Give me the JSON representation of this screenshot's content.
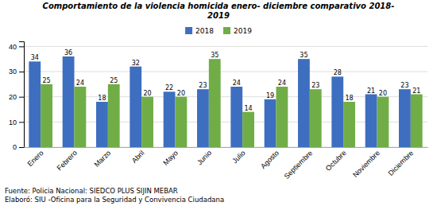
{
  "chart_data": {
    "type": "bar",
    "title": "Comportamiento de la violencia  homicida enero- diciembre comparativo 2018-\n2019",
    "categories": [
      "Enero",
      "Febrero",
      "Marzo",
      "Abril",
      "Mayo",
      "Junio",
      "Julio",
      "Agosto",
      "Septiembre",
      "Octubre",
      "Noviembre",
      "Diciembre"
    ],
    "series": [
      {
        "name": "2018",
        "color": "#3E6EBF",
        "values": [
          34,
          36,
          18,
          32,
          22,
          23,
          24,
          19,
          35,
          28,
          21,
          23
        ]
      },
      {
        "name": "2019",
        "color": "#70AD47",
        "values": [
          25,
          24,
          25,
          20,
          20,
          35,
          14,
          24,
          23,
          18,
          20,
          21
        ]
      }
    ],
    "ylim": [
      0,
      42
    ],
    "yticks": [
      0,
      10,
      20,
      30,
      40
    ],
    "grid": true,
    "legend": "top",
    "data_labels": true,
    "annotations": [
      "Fuente: Policia Nacional: SIEDCO PLUS SIJIN MEBAR",
      "Elaboró:  SIU -Oficina para la Seguridad y Convivencia Ciudadana"
    ]
  }
}
